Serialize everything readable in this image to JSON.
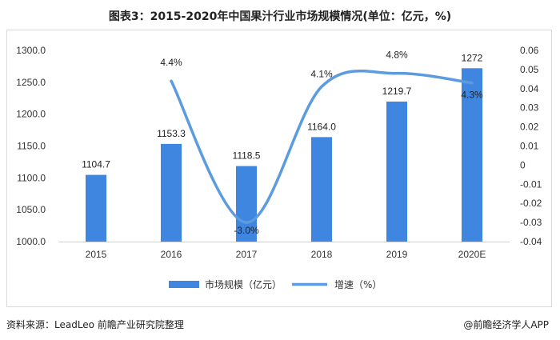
{
  "title": "图表3：2015-2020年中国果汁行业市场规模情况(单位：亿元，%)",
  "footer": {
    "source": "资料来源：LeadLeo 前瞻产业研究院整理",
    "credit": "@前瞻经济学人APP"
  },
  "colors": {
    "bar": "#3f86e0",
    "line": "#5b9bdf",
    "frame": "#d9d9d9"
  },
  "chart_data": {
    "type": "bar",
    "categories": [
      "2015",
      "2016",
      "2017",
      "2018",
      "2019",
      "2020E"
    ],
    "series": [
      {
        "name": "市场规模（亿元）",
        "type": "bar",
        "axis": "left",
        "values": [
          1104.7,
          1153.3,
          1118.5,
          1164.0,
          1219.7,
          1272
        ],
        "labels": [
          "1104.7",
          "1153.3",
          "1118.5",
          "1164.0",
          "1219.7",
          "1272"
        ]
      },
      {
        "name": "增速（%）",
        "type": "line",
        "axis": "right",
        "values": [
          null,
          0.044,
          -0.03,
          0.041,
          0.048,
          0.043
        ],
        "labels": [
          "",
          "4.4%",
          "-3.0%",
          "4.1%",
          "4.8%",
          "4.3%"
        ]
      }
    ],
    "y_left": {
      "ylim": [
        1000,
        1300
      ],
      "ticks": [
        1000,
        1050,
        1100,
        1150,
        1200,
        1250,
        1300
      ],
      "tick_labels": [
        "1000.0",
        "1050.0",
        "1100.0",
        "1150.0",
        "1200.0",
        "1250.0",
        "1300.0"
      ]
    },
    "y_right": {
      "ylim": [
        -0.04,
        0.06
      ],
      "ticks": [
        -0.04,
        -0.03,
        -0.02,
        -0.01,
        0,
        0.01,
        0.02,
        0.03,
        0.04,
        0.05,
        0.06
      ],
      "tick_labels": [
        "-0.04",
        "-0.03",
        "-0.02",
        "-0.01",
        "0",
        "0.01",
        "0.02",
        "0.03",
        "0.04",
        "0.05",
        "0.06"
      ]
    },
    "grid": false,
    "legend": "bottom-center"
  }
}
